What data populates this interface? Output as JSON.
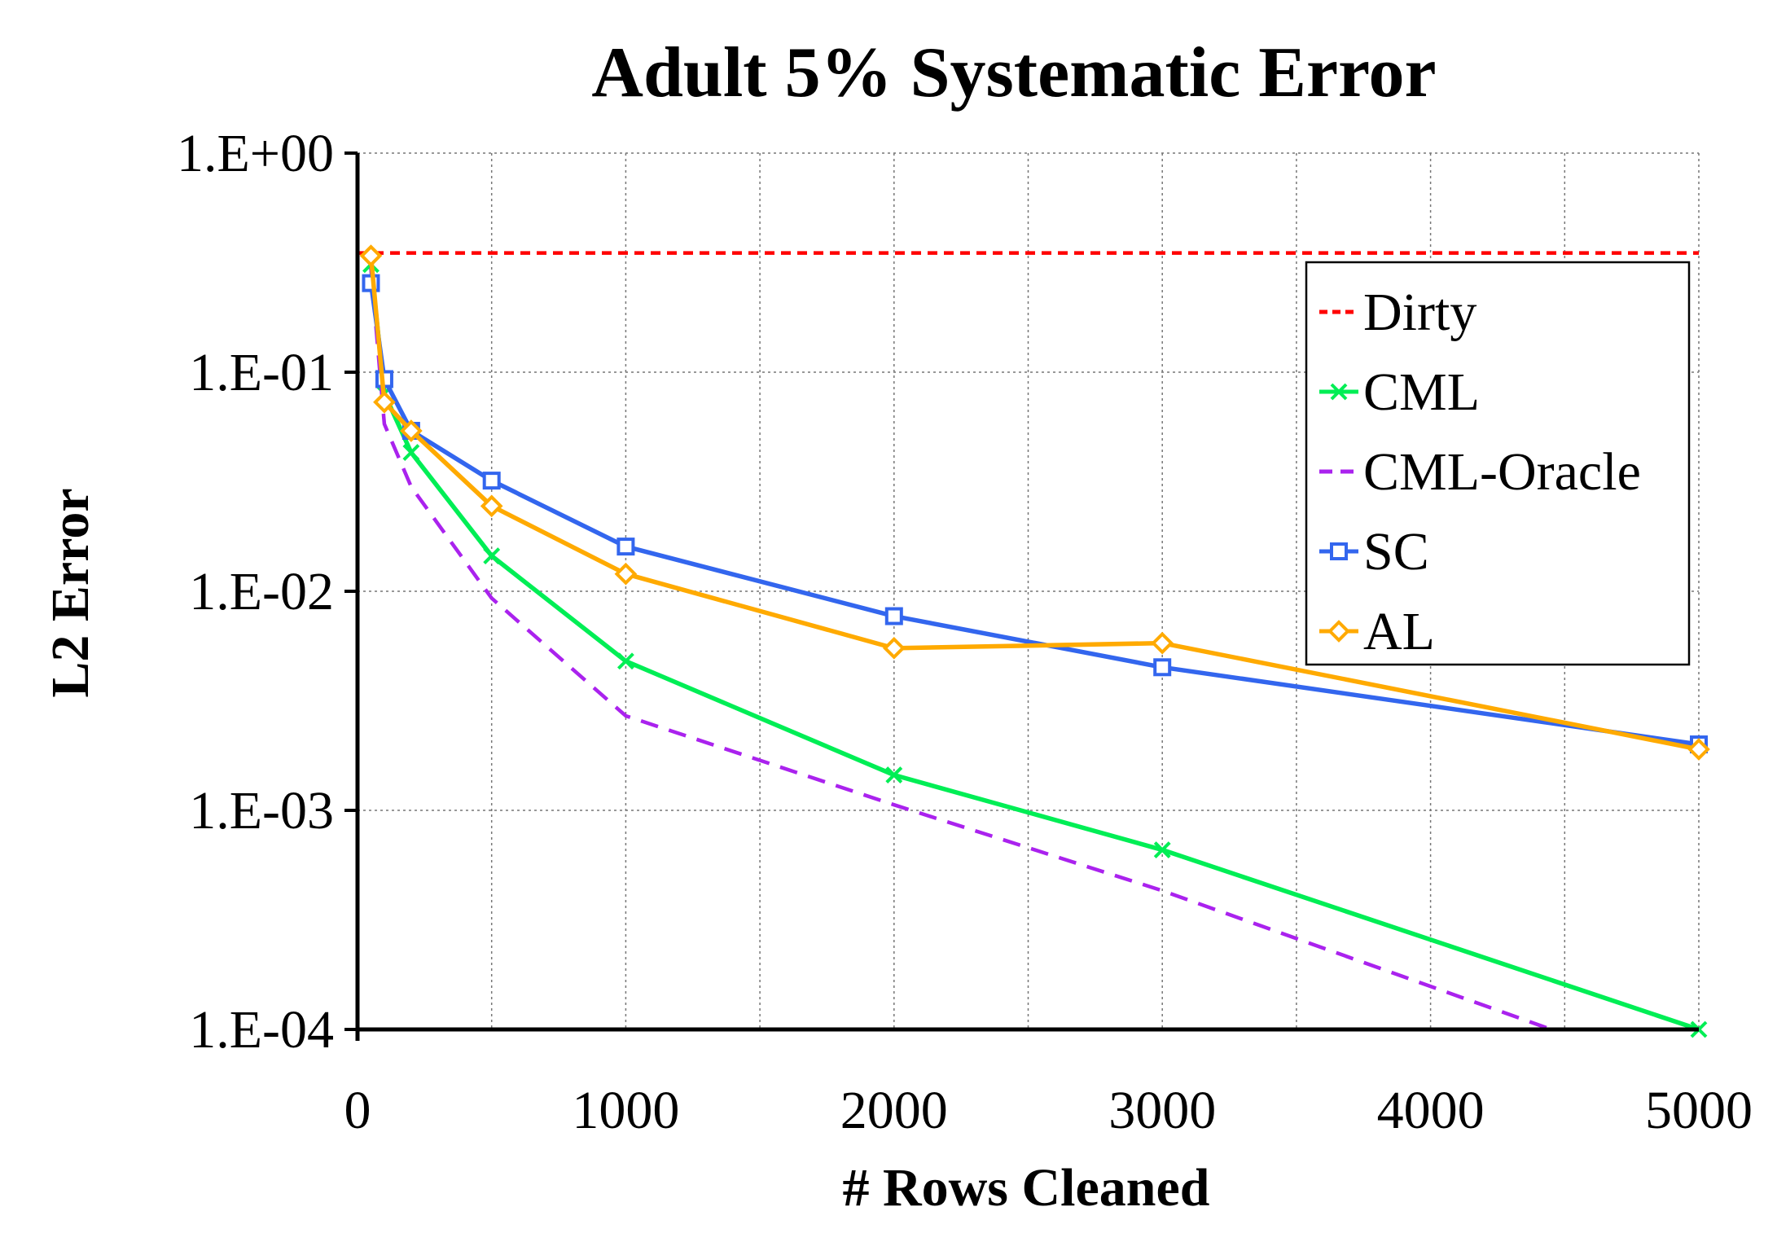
{
  "chart_data": {
    "type": "line",
    "title": "Adult 5% Systematic Error",
    "xlabel": "# Rows Cleaned",
    "ylabel": "L2 Error",
    "xlim": [
      0,
      5000
    ],
    "ylim": [
      0.0001,
      1
    ],
    "yscale": "log",
    "x_ticks": [
      0,
      1000,
      2000,
      3000,
      4000,
      5000
    ],
    "x_tick_labels": [
      "0",
      "1000",
      "2000",
      "3000",
      "4000",
      "5000"
    ],
    "y_ticks": [
      1,
      0.1,
      0.01,
      0.001,
      0.0001
    ],
    "y_tick_labels": [
      "1.E+00",
      "1.E-01",
      "1.E-02",
      "1.E-03",
      "1.E-04"
    ],
    "x_grid": [
      0,
      500,
      1000,
      1500,
      2000,
      2500,
      3000,
      3500,
      4000,
      4500,
      5000
    ],
    "grid": true,
    "legend_position": "top-right",
    "series": [
      {
        "name": "Dirty",
        "color": "#ff0000",
        "style": "dashed",
        "marker": "none",
        "x": [
          0,
          5000
        ],
        "y": [
          0.35,
          0.35
        ]
      },
      {
        "name": "CML",
        "color": "#00ee55",
        "style": "solid",
        "marker": "x",
        "x": [
          50,
          100,
          200,
          500,
          1000,
          2000,
          3000,
          5000
        ],
        "y": [
          0.31,
          0.08,
          0.043,
          0.0145,
          0.0048,
          0.00145,
          0.00066,
          0.0001
        ]
      },
      {
        "name": "CML-Oracle",
        "color": "#aa22ee",
        "style": "dashed",
        "marker": "none",
        "x": [
          50,
          100,
          200,
          500,
          1000,
          2000,
          3000,
          4450
        ],
        "y": [
          0.3,
          0.058,
          0.03,
          0.0093,
          0.0027,
          0.00106,
          0.00043,
          0.0001
        ]
      },
      {
        "name": "SC",
        "color": "#3366ee",
        "style": "solid",
        "marker": "square",
        "x": [
          50,
          100,
          200,
          500,
          1000,
          2000,
          3000,
          5000
        ],
        "y": [
          0.255,
          0.093,
          0.054,
          0.032,
          0.016,
          0.0077,
          0.0045,
          0.002
        ]
      },
      {
        "name": "AL",
        "color": "#ffaa00",
        "style": "solid",
        "marker": "diamond",
        "x": [
          50,
          100,
          200,
          500,
          1000,
          2000,
          3000,
          5000
        ],
        "y": [
          0.34,
          0.073,
          0.054,
          0.0245,
          0.012,
          0.0055,
          0.0058,
          0.0019
        ]
      }
    ]
  }
}
